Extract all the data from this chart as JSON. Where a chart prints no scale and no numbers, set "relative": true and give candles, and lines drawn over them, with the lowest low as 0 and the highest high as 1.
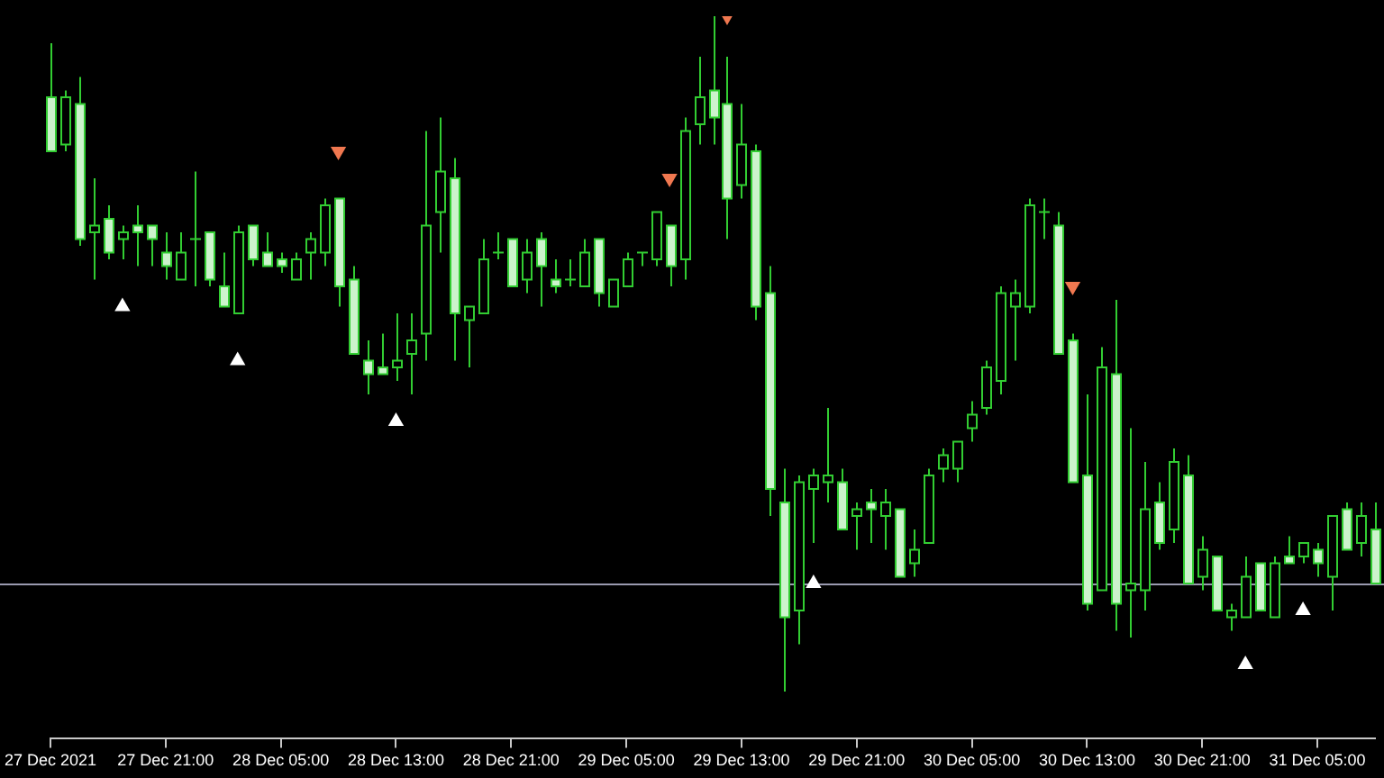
{
  "chart_data": {
    "type": "candlestick",
    "relative": true,
    "color": "#32cd32",
    "marker": "triangle",
    "grid": false,
    "colors": [
      "#ccf3cc",
      "#000000",
      "#ccf3cc",
      "#000000",
      "#ccf3cc",
      "#000000",
      "#ccf3cc",
      "#ccf3cc",
      "#ccf3cc",
      "#000000",
      "#32cd32",
      "#ccf3cc",
      "#ccf3cc",
      "#000000",
      "#ccf3cc",
      "#ccf3cc",
      "#ccf3cc",
      "#000000",
      "#000000",
      "#000000",
      "#ccf3cc",
      "#ccf3cc",
      "#ccf3cc",
      "#ccf3cc",
      "#000000",
      "#000000",
      "#000000",
      "#000000",
      "#ccf3cc",
      "#000000",
      "#000000",
      "#32cd32",
      "#ccf3cc",
      "#000000",
      "#ccf3cc",
      "#ccf3cc",
      "#32cd32",
      "#000000",
      "#ccf3cc",
      "#000000",
      "#000000",
      "#32cd32",
      "#000000",
      "#ccf3cc",
      "#000000",
      "#000000",
      "#ccf3cc",
      "#ccf3cc",
      "#000000",
      "#ccf3cc",
      "#ccf3cc",
      "#ccf3cc",
      "#000000",
      "#000000",
      "#000000",
      "#ccf3cc",
      "#000000",
      "#ccf3cc",
      "#000000",
      "#ccf3cc",
      "#000000",
      "#000000",
      "#000000",
      "#000000",
      "#000000",
      "#000000",
      "#000000",
      "#000000",
      "#000000",
      "#32cd32",
      "#ccf3cc",
      "#ccf3cc",
      "#ccf3cc",
      "#000000",
      "#ccf3cc",
      "#000000",
      "#000000",
      "#ccf3cc",
      "#000000",
      "#ccf3cc",
      "#000000",
      "#ccf3cc",
      "#000000",
      "#000000",
      "#ccf3cc",
      "#000000",
      "#ccf3cc",
      "#000000",
      "#ccf3cc",
      "#000000",
      "#ccf3cc",
      "#000000",
      "#ccf3cc"
    ],
    "legend": false,
    "tick_labels": "x",
    "categories": [
      "27 Dec 2021",
      null,
      null,
      null,
      null,
      null,
      null,
      null,
      "27 Dec 21:00",
      null,
      null,
      null,
      null,
      null,
      null,
      null,
      "28 Dec 05:00",
      null,
      null,
      null,
      null,
      null,
      null,
      null,
      "28 Dec 13:00",
      null,
      null,
      null,
      null,
      null,
      null,
      null,
      "28 Dec 21:00",
      null,
      null,
      null,
      null,
      null,
      null,
      null,
      "29 Dec 05:00",
      null,
      null,
      null,
      null,
      null,
      null,
      null,
      "29 Dec 13:00",
      null,
      null,
      null,
      null,
      null,
      null,
      null,
      "29 Dec 21:00",
      null,
      null,
      null,
      null,
      null,
      null,
      null,
      "30 Dec 05:00",
      null,
      null,
      null,
      null,
      null,
      null,
      null,
      "30 Dec 13:00",
      null,
      null,
      null,
      null,
      null,
      null,
      null,
      "30 Dec 21:00",
      null,
      null,
      null,
      null,
      null,
      null,
      null,
      "31 Dec 05:00",
      null,
      null,
      null,
      null
    ],
    "ohlc": [
      [
        0.88,
        0.96,
        0.8,
        0.8
      ],
      [
        0.81,
        0.89,
        0.8,
        0.88
      ],
      [
        0.87,
        0.91,
        0.66,
        0.67
      ],
      [
        0.68,
        0.76,
        0.61,
        0.69
      ],
      [
        0.7,
        0.72,
        0.64,
        0.65
      ],
      [
        0.67,
        0.69,
        0.64,
        0.68
      ],
      [
        0.69,
        0.72,
        0.63,
        0.68
      ],
      [
        0.69,
        0.69,
        0.63,
        0.67
      ],
      [
        0.65,
        0.68,
        0.61,
        0.63
      ],
      [
        0.61,
        0.68,
        0.61,
        0.65
      ],
      [
        0.67,
        0.77,
        0.6,
        0.67
      ],
      [
        0.68,
        0.68,
        0.6,
        0.61
      ],
      [
        0.6,
        0.65,
        0.57,
        0.57
      ],
      [
        0.56,
        0.69,
        0.56,
        0.68
      ],
      [
        0.69,
        0.69,
        0.63,
        0.64
      ],
      [
        0.65,
        0.68,
        0.63,
        0.63
      ],
      [
        0.64,
        0.65,
        0.62,
        0.63
      ],
      [
        0.61,
        0.65,
        0.61,
        0.64
      ],
      [
        0.65,
        0.68,
        0.61,
        0.67
      ],
      [
        0.65,
        0.73,
        0.63,
        0.72
      ],
      [
        0.73,
        0.73,
        0.57,
        0.6
      ],
      [
        0.61,
        0.63,
        0.5,
        0.5
      ],
      [
        0.49,
        0.52,
        0.44,
        0.47
      ],
      [
        0.48,
        0.53,
        0.47,
        0.47
      ],
      [
        0.48,
        0.56,
        0.46,
        0.49
      ],
      [
        0.5,
        0.56,
        0.44,
        0.52
      ],
      [
        0.53,
        0.83,
        0.49,
        0.69
      ],
      [
        0.71,
        0.85,
        0.65,
        0.77
      ],
      [
        0.76,
        0.79,
        0.49,
        0.56
      ],
      [
        0.55,
        0.57,
        0.48,
        0.57
      ],
      [
        0.56,
        0.67,
        0.56,
        0.64
      ],
      [
        0.65,
        0.68,
        0.64,
        0.65
      ],
      [
        0.67,
        0.67,
        0.6,
        0.6
      ],
      [
        0.61,
        0.67,
        0.59,
        0.65
      ],
      [
        0.67,
        0.68,
        0.57,
        0.63
      ],
      [
        0.61,
        0.64,
        0.59,
        0.6
      ],
      [
        0.61,
        0.64,
        0.6,
        0.61
      ],
      [
        0.6,
        0.67,
        0.6,
        0.65
      ],
      [
        0.67,
        0.67,
        0.57,
        0.59
      ],
      [
        0.57,
        0.61,
        0.57,
        0.61
      ],
      [
        0.6,
        0.65,
        0.6,
        0.64
      ],
      [
        0.65,
        0.65,
        0.63,
        0.65
      ],
      [
        0.64,
        0.71,
        0.63,
        0.71
      ],
      [
        0.69,
        0.69,
        0.6,
        0.63
      ],
      [
        0.64,
        0.85,
        0.61,
        0.83
      ],
      [
        0.84,
        0.94,
        0.81,
        0.88
      ],
      [
        0.89,
        1.0,
        0.81,
        0.85
      ],
      [
        0.87,
        0.94,
        0.67,
        0.73
      ],
      [
        0.75,
        0.87,
        0.73,
        0.81
      ],
      [
        0.8,
        0.81,
        0.55,
        0.57
      ],
      [
        0.59,
        0.63,
        0.26,
        0.3
      ],
      [
        0.28,
        0.33,
        0.0,
        0.11
      ],
      [
        0.12,
        0.32,
        0.07,
        0.31
      ],
      [
        0.3,
        0.33,
        0.22,
        0.32
      ],
      [
        0.31,
        0.42,
        0.28,
        0.32
      ],
      [
        0.31,
        0.33,
        0.24,
        0.24
      ],
      [
        0.26,
        0.28,
        0.21,
        0.27
      ],
      [
        0.28,
        0.3,
        0.22,
        0.27
      ],
      [
        0.26,
        0.3,
        0.21,
        0.28
      ],
      [
        0.27,
        0.27,
        0.17,
        0.17
      ],
      [
        0.19,
        0.24,
        0.17,
        0.21
      ],
      [
        0.22,
        0.33,
        0.22,
        0.32
      ],
      [
        0.33,
        0.36,
        0.31,
        0.35
      ],
      [
        0.33,
        0.37,
        0.31,
        0.37
      ],
      [
        0.39,
        0.43,
        0.37,
        0.41
      ],
      [
        0.42,
        0.49,
        0.41,
        0.48
      ],
      [
        0.46,
        0.6,
        0.44,
        0.59
      ],
      [
        0.57,
        0.61,
        0.49,
        0.59
      ],
      [
        0.57,
        0.73,
        0.56,
        0.72
      ],
      [
        0.71,
        0.73,
        0.67,
        0.71
      ],
      [
        0.69,
        0.71,
        0.5,
        0.5
      ],
      [
        0.52,
        0.53,
        0.31,
        0.31
      ],
      [
        0.32,
        0.44,
        0.12,
        0.13
      ],
      [
        0.15,
        0.51,
        0.15,
        0.48
      ],
      [
        0.47,
        0.58,
        0.09,
        0.13
      ],
      [
        0.15,
        0.39,
        0.08,
        0.16
      ],
      [
        0.15,
        0.34,
        0.12,
        0.27
      ],
      [
        0.28,
        0.31,
        0.21,
        0.22
      ],
      [
        0.24,
        0.36,
        0.22,
        0.34
      ],
      [
        0.32,
        0.35,
        0.16,
        0.16
      ],
      [
        0.17,
        0.23,
        0.15,
        0.21
      ],
      [
        0.2,
        0.2,
        0.12,
        0.12
      ],
      [
        0.11,
        0.13,
        0.09,
        0.12
      ],
      [
        0.11,
        0.2,
        0.11,
        0.17
      ],
      [
        0.19,
        0.19,
        0.12,
        0.12
      ],
      [
        0.11,
        0.2,
        0.11,
        0.19
      ],
      [
        0.2,
        0.23,
        0.19,
        0.19
      ],
      [
        0.2,
        0.22,
        0.19,
        0.22
      ],
      [
        0.21,
        0.22,
        0.17,
        0.19
      ],
      [
        0.17,
        0.26,
        0.12,
        0.26
      ],
      [
        0.27,
        0.28,
        0.21,
        0.21
      ],
      [
        0.22,
        0.28,
        0.2,
        0.26
      ],
      [
        0.24,
        0.28,
        0.16,
        0.16
      ]
    ],
    "series": [
      {
        "type": "scatter",
        "color": "#ffffff",
        "values": [
          null,
          null,
          null,
          null,
          null,
          0.57,
          null,
          null,
          null,
          null,
          null,
          null,
          null,
          0.49,
          null,
          null,
          null,
          null,
          null,
          null,
          null,
          null,
          null,
          null,
          0.4,
          null,
          null,
          null,
          null,
          null,
          null,
          null,
          null,
          null,
          null,
          null,
          null,
          null,
          null,
          null,
          null,
          null,
          null,
          null,
          null,
          null,
          null,
          null,
          null,
          null,
          null,
          null,
          null,
          0.16,
          null,
          null,
          null,
          null,
          null,
          null,
          null,
          null,
          null,
          null,
          null,
          null,
          null,
          null,
          null,
          null,
          null,
          null,
          null,
          null,
          null,
          null,
          null,
          null,
          null,
          null,
          null,
          null,
          null,
          0.04,
          null,
          null,
          null,
          0.12,
          null,
          null,
          null,
          null,
          null
        ]
      },
      {
        "type": "scatter",
        "color": "#f07850",
        "values": [
          null,
          null,
          null,
          null,
          null,
          null,
          null,
          null,
          null,
          null,
          null,
          null,
          null,
          null,
          null,
          null,
          null,
          null,
          null,
          null,
          0.8,
          null,
          null,
          null,
          null,
          null,
          null,
          null,
          null,
          null,
          null,
          null,
          null,
          null,
          null,
          null,
          null,
          null,
          null,
          null,
          null,
          null,
          null,
          0.76,
          null,
          null,
          null,
          1.0,
          null,
          null,
          null,
          null,
          null,
          null,
          null,
          null,
          null,
          null,
          null,
          null,
          null,
          null,
          null,
          null,
          null,
          null,
          null,
          null,
          null,
          null,
          null,
          0.6,
          null,
          null,
          null,
          null,
          null,
          null,
          null,
          null,
          null,
          null,
          null,
          null,
          null,
          null,
          null,
          null,
          null,
          null,
          null,
          null,
          null
        ]
      }
    ],
    "ref_lines": [
      {
        "axis": "y",
        "value": 0.16,
        "color": "#9a9ab0"
      }
    ]
  }
}
